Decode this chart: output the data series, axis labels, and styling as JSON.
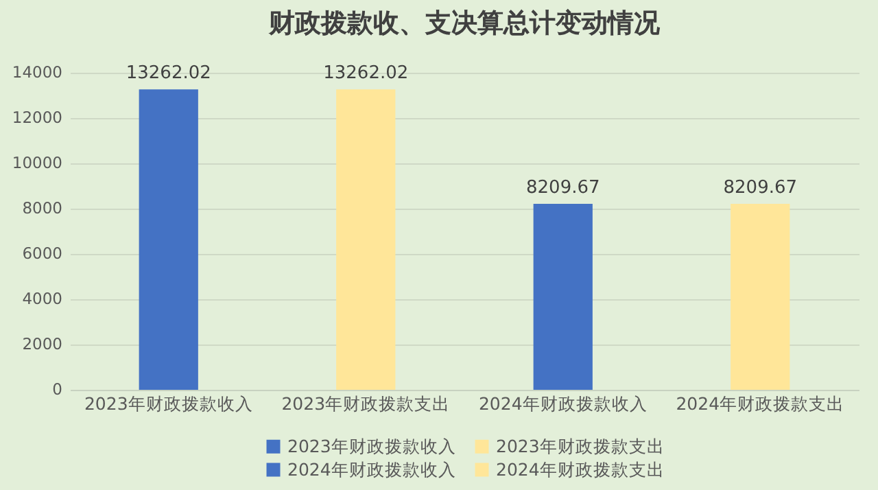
{
  "chart_data": {
    "type": "bar",
    "title": "财政拨款收、支决算总计变动情况",
    "categories": [
      "2023年财政拨款收入",
      "2023年财政拨款支出",
      "2024年财政拨款收入",
      "2024年财政拨款支出"
    ],
    "series": [
      {
        "name": "2023年财政拨款收入",
        "color": "#4472c4",
        "values": [
          13262.02,
          null,
          null,
          null
        ]
      },
      {
        "name": "2023年财政拨款支出",
        "color": "#ffe699",
        "values": [
          null,
          13262.02,
          null,
          null
        ]
      },
      {
        "name": "2024年财政拨款收入",
        "color": "#4472c4",
        "values": [
          null,
          null,
          8209.67,
          null
        ]
      },
      {
        "name": "2024年财政拨款支出",
        "color": "#ffe699",
        "values": [
          null,
          null,
          null,
          8209.67
        ]
      }
    ],
    "ylim": [
      0,
      14000
    ],
    "yticks": [
      0,
      2000,
      4000,
      6000,
      8000,
      10000,
      12000,
      14000
    ],
    "grid": "y",
    "data_labels": true,
    "legend": "bottom"
  }
}
